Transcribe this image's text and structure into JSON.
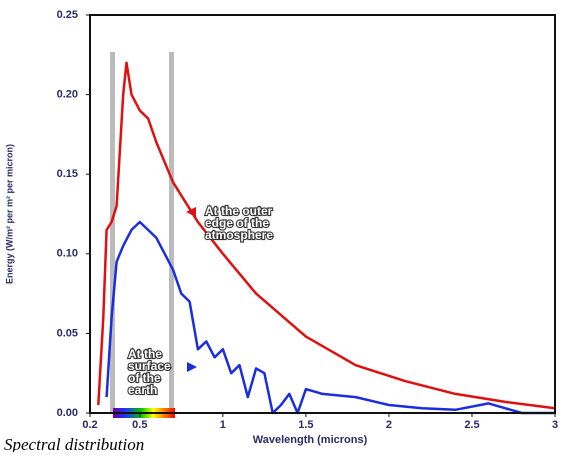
{
  "chart_data": {
    "type": "line",
    "caption": "Spectral distribution",
    "xlabel": "Wavelength (microns)",
    "ylabel": "Energy (W/m² per m² per micron)",
    "xlim": [
      0.2,
      3.0
    ],
    "xticks": [
      0.2,
      0.5,
      1.0,
      1.5,
      2.0,
      2.5,
      3.0
    ],
    "ylim": [
      0,
      0.25
    ],
    "yticks": [
      {
        "value": 0,
        "label": "0.00"
      },
      0.05,
      {
        "value": 0.1,
        "label": "0.10"
      },
      0.15,
      {
        "value": 0.2,
        "label": "0.20"
      },
      0.25
    ],
    "series": [
      {
        "name": "At the outer edge of the atmosphere",
        "color": "#e01010",
        "x": [
          0.25,
          0.28,
          0.3,
          0.33,
          0.36,
          0.4,
          0.42,
          0.45,
          0.5,
          0.55,
          0.6,
          0.7,
          0.85,
          1.0,
          1.2,
          1.5,
          1.8,
          2.1,
          2.4,
          2.7,
          3.0
        ],
        "values": [
          0.005,
          0.06,
          0.115,
          0.12,
          0.13,
          0.2,
          0.22,
          0.2,
          0.19,
          0.185,
          0.17,
          0.145,
          0.12,
          0.1,
          0.075,
          0.048,
          0.03,
          0.02,
          0.012,
          0.007,
          0.003
        ]
      },
      {
        "name": "At the surface of the earth",
        "color": "#1a2ee0",
        "x": [
          0.3,
          0.33,
          0.36,
          0.4,
          0.45,
          0.5,
          0.55,
          0.6,
          0.65,
          0.7,
          0.75,
          0.8,
          0.85,
          0.9,
          0.95,
          1.0,
          1.05,
          1.1,
          1.15,
          1.2,
          1.25,
          1.3,
          1.35,
          1.4,
          1.45,
          1.5,
          1.6,
          1.8,
          2.0,
          2.2,
          2.4,
          2.6,
          2.8,
          3.0
        ],
        "values": [
          0.01,
          0.06,
          0.095,
          0.105,
          0.115,
          0.12,
          0.115,
          0.11,
          0.1,
          0.09,
          0.075,
          0.07,
          0.04,
          0.045,
          0.035,
          0.04,
          0.025,
          0.03,
          0.01,
          0.028,
          0.025,
          0.0,
          0.005,
          0.012,
          0.0,
          0.015,
          0.012,
          0.01,
          0.005,
          0.003,
          0.002,
          0.006,
          0.0,
          0.0
        ]
      }
    ],
    "annotations": [
      {
        "lines": [
          "At the outer",
          "edge of the",
          "atmosphere"
        ]
      },
      {
        "lines": [
          "At the",
          "surface",
          "of the",
          "earth"
        ]
      }
    ]
  }
}
